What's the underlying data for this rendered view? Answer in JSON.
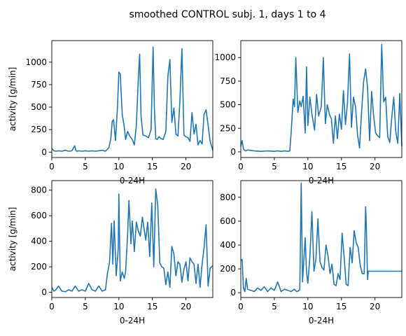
{
  "suptitle": "smoothed CONTROL subj. 1, days 1 to 4",
  "line_color": "#1f77b4",
  "chart_data": [
    {
      "type": "line",
      "day": 1,
      "xlabel": "0-24H",
      "ylabel": "activity [g/min]",
      "xlim": [
        0,
        24
      ],
      "ylim": [
        -60,
        1240
      ],
      "xticks": [
        0,
        5,
        10,
        15,
        20
      ],
      "yticks": [
        0,
        250,
        500,
        750,
        1000
      ],
      "x": [
        0,
        0.3,
        0.6,
        1,
        1.5,
        2,
        2.5,
        3,
        3.4,
        3.6,
        3.8,
        4,
        4.5,
        5,
        5.5,
        6,
        6.5,
        7,
        7.5,
        8,
        8.5,
        8.8,
        9,
        9.2,
        9.5,
        9.8,
        10,
        10.2,
        10.5,
        10.8,
        11,
        11.3,
        11.6,
        12,
        12.3,
        12.6,
        12.9,
        13.1,
        13.3,
        13.6,
        14,
        14.4,
        14.8,
        15.1,
        15.3,
        15.5,
        15.7,
        16,
        16.3,
        16.6,
        17,
        17.3,
        17.6,
        17.9,
        18.2,
        18.5,
        18.8,
        19.1,
        19.4,
        19.7,
        20,
        20.3,
        20.6,
        20.9,
        21.2,
        21.5,
        21.8,
        22.1,
        22.4,
        22.7,
        23,
        23.3,
        23.6,
        24
      ],
      "y": [
        40,
        15,
        10,
        15,
        10,
        20,
        10,
        15,
        70,
        15,
        10,
        15,
        10,
        15,
        10,
        15,
        10,
        15,
        20,
        10,
        50,
        150,
        340,
        360,
        130,
        510,
        890,
        870,
        420,
        280,
        140,
        230,
        180,
        140,
        80,
        300,
        820,
        1090,
        400,
        190,
        180,
        160,
        250,
        1170,
        480,
        150,
        140,
        170,
        150,
        140,
        230,
        840,
        1030,
        330,
        490,
        200,
        180,
        570,
        1150,
        190,
        170,
        160,
        120,
        440,
        200,
        310,
        80,
        130,
        90,
        420,
        470,
        300,
        120,
        20
      ]
    },
    {
      "type": "line",
      "day": 2,
      "xlabel": "0-24H",
      "ylabel": "",
      "xlim": [
        0,
        24
      ],
      "ylim": [
        -60,
        1180
      ],
      "xticks": [
        0,
        5,
        10,
        15,
        20
      ],
      "yticks": [
        0,
        250,
        500,
        750,
        1000
      ],
      "x": [
        0,
        0.2,
        0.4,
        0.7,
        1,
        1.5,
        2,
        3,
        4,
        5,
        5.5,
        6,
        6.5,
        7,
        7.3,
        7.5,
        7.8,
        8,
        8.2,
        8.5,
        8.8,
        9,
        9.3,
        9.6,
        9.8,
        10,
        10.3,
        10.6,
        11,
        11.3,
        11.6,
        12,
        12.3,
        12.6,
        12.9,
        13.2,
        13.5,
        13.8,
        14.1,
        14.4,
        14.7,
        15,
        15.3,
        15.6,
        15.9,
        16.2,
        16.5,
        16.8,
        17.1,
        17.4,
        17.7,
        18,
        18.3,
        18.6,
        18.9,
        19.2,
        19.5,
        19.8,
        20.1,
        20.4,
        20.7,
        21,
        21.3,
        21.6,
        21.9,
        22.2,
        22.5,
        22.8,
        23.1,
        23.4,
        23.7,
        24
      ],
      "y": [
        60,
        120,
        30,
        10,
        20,
        15,
        10,
        5,
        10,
        5,
        10,
        5,
        10,
        5,
        10,
        200,
        560,
        480,
        1000,
        420,
        540,
        480,
        590,
        200,
        900,
        280,
        580,
        400,
        230,
        610,
        380,
        480,
        1000,
        300,
        500,
        400,
        350,
        90,
        380,
        140,
        400,
        240,
        650,
        290,
        520,
        1040,
        260,
        580,
        480,
        180,
        40,
        420,
        740,
        880,
        680,
        120,
        640,
        380,
        200,
        170,
        150,
        1140,
        530,
        580,
        160,
        100,
        360,
        580,
        210,
        90,
        620,
        60
      ]
    },
    {
      "type": "line",
      "day": 3,
      "xlabel": "0-24H",
      "ylabel": "activity [g/min]",
      "xlim": [
        0,
        24
      ],
      "ylim": [
        -40,
        875
      ],
      "xticks": [
        0,
        5,
        10,
        15,
        20
      ],
      "yticks": [
        0,
        200,
        400,
        600,
        800
      ],
      "x": [
        0,
        0.3,
        0.6,
        1,
        1.5,
        2,
        2.5,
        3,
        3.5,
        4,
        4.5,
        5,
        5.5,
        6,
        6.5,
        7,
        7.5,
        8,
        8.3,
        8.6,
        8.9,
        9.1,
        9.3,
        9.6,
        9.9,
        10,
        10.2,
        10.5,
        10.8,
        11,
        11.3,
        11.5,
        11.8,
        12,
        12.3,
        12.6,
        12.9,
        13.2,
        13.5,
        13.8,
        14,
        14.3,
        14.6,
        14.9,
        15.2,
        15.5,
        15.8,
        16.1,
        16.4,
        16.7,
        17,
        17.3,
        17.6,
        17.9,
        18.2,
        18.5,
        18.8,
        19.1,
        19.4,
        19.7,
        20,
        20.3,
        20.6,
        20.9,
        21.2,
        21.5,
        21.8,
        22.1,
        22.4,
        22.7,
        23,
        23.3,
        23.6,
        24
      ],
      "y": [
        40,
        10,
        20,
        50,
        10,
        5,
        20,
        10,
        50,
        10,
        20,
        10,
        70,
        20,
        10,
        50,
        10,
        20,
        150,
        230,
        540,
        220,
        560,
        130,
        340,
        770,
        90,
        160,
        110,
        160,
        450,
        720,
        380,
        560,
        320,
        550,
        480,
        440,
        590,
        480,
        410,
        550,
        280,
        700,
        200,
        810,
        680,
        230,
        200,
        190,
        60,
        160,
        40,
        360,
        300,
        130,
        240,
        220,
        80,
        180,
        240,
        90,
        270,
        240,
        220,
        70,
        220,
        40,
        220,
        350,
        530,
        50,
        190,
        210
      ]
    },
    {
      "type": "line",
      "day": 4,
      "xlabel": "0-24H",
      "ylabel": "",
      "xlim": [
        0,
        24
      ],
      "ylim": [
        -40,
        940
      ],
      "xticks": [
        0,
        5,
        10,
        15,
        20
      ],
      "yticks": [
        0,
        200,
        400,
        600,
        800
      ],
      "x": [
        0,
        0.2,
        0.4,
        0.6,
        0.8,
        1,
        1.5,
        2,
        2.5,
        3,
        3.5,
        4,
        4.5,
        5,
        5.5,
        6,
        6.5,
        7,
        7.5,
        8,
        8.3,
        8.6,
        8.8,
        9,
        9.2,
        9.4,
        9.6,
        9.8,
        10,
        10.3,
        10.6,
        10.9,
        11.2,
        11.5,
        11.8,
        12.1,
        12.4,
        12.7,
        13,
        13.3,
        13.6,
        13.9,
        14.2,
        14.5,
        14.8,
        15.1,
        15.4,
        15.7,
        16,
        16.3,
        16.6,
        16.9,
        17.2,
        17.5,
        17.8,
        18.1,
        18.4,
        18.6,
        18.7,
        18.9,
        19,
        24
      ],
      "y": [
        270,
        280,
        40,
        10,
        120,
        30,
        20,
        10,
        40,
        20,
        50,
        10,
        40,
        20,
        90,
        10,
        30,
        20,
        10,
        30,
        10,
        15,
        30,
        920,
        90,
        280,
        460,
        170,
        80,
        300,
        680,
        180,
        280,
        620,
        260,
        210,
        190,
        400,
        310,
        160,
        240,
        70,
        60,
        160,
        110,
        500,
        300,
        70,
        60,
        380,
        250,
        520,
        420,
        380,
        230,
        160,
        160,
        720,
        580,
        110,
        180,
        180
      ]
    }
  ]
}
